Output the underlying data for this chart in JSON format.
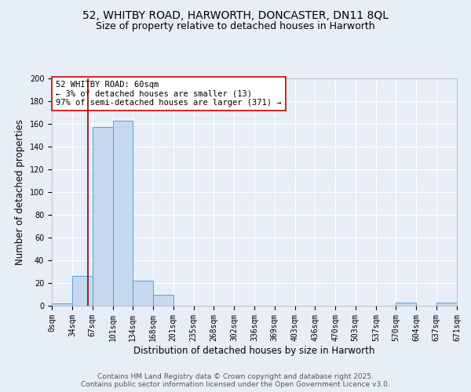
{
  "title": "52, WHITBY ROAD, HARWORTH, DONCASTER, DN11 8QL",
  "subtitle": "Size of property relative to detached houses in Harworth",
  "xlabel": "Distribution of detached houses by size in Harworth",
  "ylabel": "Number of detached properties",
  "bar_color": "#c5d8f0",
  "bar_edge_color": "#5a9fd4",
  "background_color": "#e8eef8",
  "grid_color": "#ffffff",
  "vline_x": 60,
  "vline_color": "#8b0000",
  "annotation_text": "52 WHITBY ROAD: 60sqm\n← 3% of detached houses are smaller (13)\n97% of semi-detached houses are larger (371) →",
  "annotation_box_color": "#ffffff",
  "annotation_box_edge": "#cc0000",
  "bin_edges": [
    0,
    34,
    67,
    101,
    134,
    168,
    201,
    235,
    268,
    302,
    336,
    369,
    403,
    436,
    470,
    503,
    537,
    570,
    604,
    637,
    671
  ],
  "bin_counts": [
    2,
    26,
    157,
    163,
    22,
    10,
    0,
    0,
    0,
    0,
    0,
    0,
    0,
    0,
    0,
    0,
    0,
    3,
    0,
    3
  ],
  "ylim": [
    0,
    200
  ],
  "yticks": [
    0,
    20,
    40,
    60,
    80,
    100,
    120,
    140,
    160,
    180,
    200
  ],
  "xtick_labels": [
    "0sqm",
    "34sqm",
    "67sqm",
    "101sqm",
    "134sqm",
    "168sqm",
    "201sqm",
    "235sqm",
    "268sqm",
    "302sqm",
    "336sqm",
    "369sqm",
    "403sqm",
    "436sqm",
    "470sqm",
    "503sqm",
    "537sqm",
    "570sqm",
    "604sqm",
    "637sqm",
    "671sqm"
  ],
  "footer_text": "Contains HM Land Registry data © Crown copyright and database right 2025.\nContains public sector information licensed under the Open Government Licence v3.0.",
  "title_fontsize": 10,
  "subtitle_fontsize": 9,
  "axis_label_fontsize": 8.5,
  "tick_fontsize": 7,
  "annotation_fontsize": 7.5,
  "footer_fontsize": 6.5
}
